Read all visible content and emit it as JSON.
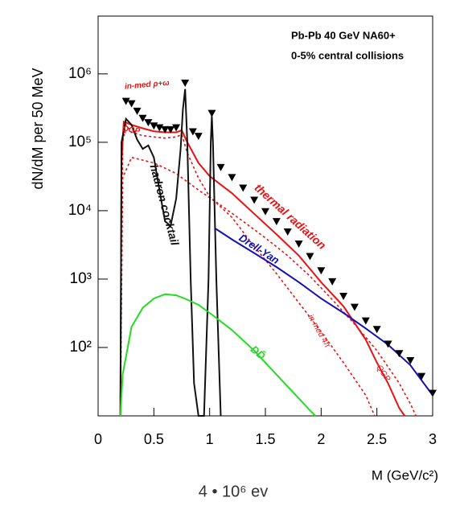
{
  "chart_data": {
    "type": "line",
    "title": [
      "Pb-Pb 40 GeV NA60+",
      "0-5% central collisions"
    ],
    "y_label": "dN/dM per 50 MeV",
    "x_label": "M (GeV/c²)",
    "caption": "4 • 10⁶ ev",
    "log_y": true,
    "xlim": [
      0,
      3
    ],
    "xticks": [
      0,
      0.5,
      1,
      1.5,
      2,
      2.5,
      3
    ],
    "ylim": [
      10,
      7000000
    ],
    "yticks": [
      {
        "value": 100,
        "label": "10²"
      },
      {
        "value": 1000,
        "label": "10³"
      },
      {
        "value": 10000,
        "label": "10⁴"
      },
      {
        "value": 100000,
        "label": "10⁵"
      },
      {
        "value": 1000000,
        "label": "10⁶"
      }
    ],
    "annotations": [
      "in-med ρ+ω",
      "QGP",
      "hadron cocktail",
      "thermal radiation",
      "Drell-Yan",
      "DD̄",
      "in-med 4π",
      "QGP"
    ],
    "series": [
      {
        "color": "#ee1111",
        "style": "solid",
        "x": [
          0.2,
          0.21,
          0.23,
          0.3,
          0.4,
          0.5,
          0.6,
          0.7,
          0.75,
          0.8,
          0.9,
          1.0,
          1.2,
          1.4,
          1.6,
          1.8,
          2.0,
          2.2,
          2.4,
          2.5,
          2.6,
          2.7,
          2.75
        ],
        "values": [
          10,
          50000,
          200000,
          180000,
          160000,
          145000,
          140000,
          140000,
          150000,
          100000,
          50000,
          32000,
          18000,
          9000,
          4500,
          2200,
          900,
          400,
          130,
          60,
          30,
          13,
          10
        ]
      },
      {
        "color": "#ee1111",
        "style": "dashed",
        "x": [
          0.2,
          0.22,
          0.25,
          0.3,
          0.4,
          0.5,
          0.6,
          0.7,
          0.75,
          0.8,
          0.9,
          1.0,
          1.2,
          1.4,
          1.6,
          1.8,
          2.0,
          2.2,
          2.4,
          2.48
        ],
        "values": [
          10,
          100000,
          180000,
          140000,
          125000,
          120000,
          115000,
          120000,
          130000,
          70000,
          30000,
          16000,
          8000,
          3000,
          1200,
          450,
          170,
          60,
          20,
          10
        ]
      },
      {
        "color": "#ee1111",
        "style": "dashed",
        "x": [
          0.2,
          0.22,
          0.3,
          0.5,
          0.7,
          0.9,
          1.1,
          1.3,
          1.5,
          1.7,
          1.9,
          2.1,
          2.3,
          2.5,
          2.7,
          2.8,
          2.85
        ],
        "values": [
          10,
          30000,
          60000,
          50000,
          35000,
          20000,
          12000,
          7000,
          4000,
          2200,
          1100,
          500,
          220,
          90,
          30,
          15,
          10
        ]
      },
      {
        "color": "#111111",
        "style": "solid",
        "x": [
          0.2,
          0.21,
          0.25,
          0.3,
          0.35,
          0.4,
          0.45,
          0.5,
          0.55,
          0.6,
          0.65,
          0.7,
          0.74,
          0.76,
          0.78,
          0.8,
          0.83,
          0.86,
          0.9,
          0.95,
          0.99,
          1.01,
          1.02,
          1.03,
          1.06,
          1.1
        ],
        "values": [
          10,
          100000,
          220000,
          180000,
          110000,
          80000,
          90000,
          60000,
          20000,
          7000,
          6000,
          15000,
          80000,
          300000,
          600000,
          100000,
          1000,
          30,
          10,
          10,
          1000,
          100000,
          240000,
          100000,
          1000,
          10
        ]
      },
      {
        "color": "#1111bb",
        "style": "solid",
        "x": [
          1.05,
          1.2,
          1.4,
          1.6,
          1.8,
          2.0,
          2.2,
          2.4,
          2.6,
          2.8,
          3.0
        ],
        "values": [
          5500,
          3800,
          2400,
          1500,
          900,
          520,
          320,
          190,
          110,
          55,
          20
        ]
      },
      {
        "color": "#22dd22",
        "style": "solid",
        "x": [
          0.2,
          0.22,
          0.3,
          0.4,
          0.5,
          0.6,
          0.7,
          0.8,
          0.9,
          1.0,
          1.2,
          1.4,
          1.6,
          1.8,
          1.9,
          1.95
        ],
        "values": [
          10,
          40,
          200,
          380,
          520,
          600,
          580,
          500,
          420,
          320,
          180,
          90,
          40,
          18,
          12,
          10
        ]
      },
      {
        "color": "#000000",
        "style": "markers",
        "x": [
          0.25,
          0.3,
          0.35,
          0.4,
          0.45,
          0.5,
          0.55,
          0.6,
          0.65,
          0.7,
          0.78,
          0.85,
          0.9,
          1.02,
          1.1,
          1.2,
          1.3,
          1.4,
          1.5,
          1.6,
          1.7,
          1.8,
          1.9,
          2.0,
          2.1,
          2.2,
          2.3,
          2.4,
          2.5,
          2.6,
          2.7,
          2.8,
          2.9,
          3.0
        ],
        "values": [
          390000,
          360000,
          280000,
          220000,
          190000,
          170000,
          160000,
          150000,
          150000,
          160000,
          720000,
          140000,
          120000,
          260000,
          42000,
          30000,
          21000,
          14000,
          9500,
          6800,
          4800,
          3200,
          2100,
          1300,
          900,
          550,
          380,
          240,
          180,
          110,
          80,
          63,
          37,
          21
        ]
      }
    ]
  }
}
